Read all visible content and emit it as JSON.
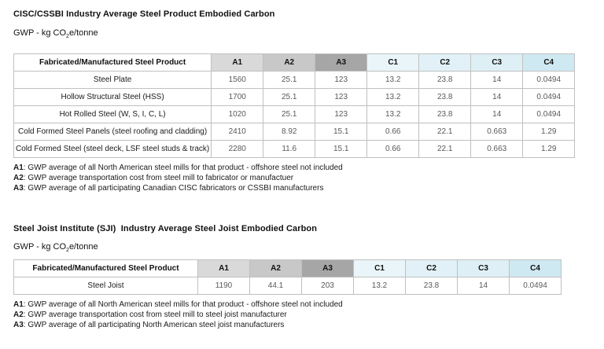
{
  "colors": {
    "table_border": "#c0c0c0",
    "header_gray_a1": "#d9d9d9",
    "header_gray_a2": "#c8c8c8",
    "header_gray_a3": "#a6a6a6",
    "header_blue_c1": "#eaf5f9",
    "header_blue_c2": "#e1f1f7",
    "header_blue_c3": "#def0f6",
    "header_blue_c4": "#cfe9f3"
  },
  "section1": {
    "title": "CISC/CSSBI Industry Average Steel Product Embodied Carbon",
    "subtitle": {
      "pre": "GWP - kg CO",
      "sub": "2",
      "post": "e/tonne"
    },
    "table": {
      "product_header": "Fabricated/Manufactured Steel Product",
      "columns": [
        "A1",
        "A2",
        "A3",
        "C1",
        "C2",
        "C3",
        "C4"
      ],
      "header_colors": [
        "#d9d9d9",
        "#c8c8c8",
        "#a6a6a6",
        "#eaf5f9",
        "#e1f1f7",
        "#def0f6",
        "#cfe9f3"
      ],
      "rows": [
        {
          "product": "Steel Plate",
          "values": [
            "1560",
            "25.1",
            "123",
            "13.2",
            "23.8",
            "14",
            "0.0494"
          ]
        },
        {
          "product": "Hollow Structural Steel (HSS)",
          "values": [
            "1700",
            "25.1",
            "123",
            "13.2",
            "23.8",
            "14",
            "0.0494"
          ]
        },
        {
          "product": "Hot Rolled Steel (W, S, I, C, L)",
          "values": [
            "1020",
            "25.1",
            "123",
            "13.2",
            "23.8",
            "14",
            "0.0494"
          ]
        },
        {
          "product": "Cold Formed Steel Panels (steel roofing and cladding)",
          "values": [
            "2410",
            "8.92",
            "15.1",
            "0.66",
            "22.1",
            "0.663",
            "1.29"
          ]
        },
        {
          "product": "Cold Formed Steel (steel deck, LSF steel studs & track)",
          "values": [
            "2280",
            "11.6",
            "15.1",
            "0.66",
            "22.1",
            "0.663",
            "1.29"
          ]
        }
      ]
    },
    "footnotes": [
      {
        "label": "A1",
        "text": ": GWP average of all North American steel mills for that product - offshore steel not included"
      },
      {
        "label": "A2",
        "text": ": GWP average transportation cost from steel mill to fabricator or manufactuer"
      },
      {
        "label": "A3",
        "text": ": GWP average of all participating Canadian CISC fabricators or CSSBI manufacturers"
      }
    ]
  },
  "section2": {
    "title": "Steel Joist Institute (SJI)  Industry Average Steel Joist Embodied Carbon",
    "subtitle": {
      "pre": "GWP - kg CO",
      "sub": "2",
      "post": "e/tonne"
    },
    "table": {
      "product_header": "Fabricated/Manufactured Steel Product",
      "columns": [
        "A1",
        "A2",
        "A3",
        "C1",
        "C2",
        "C3",
        "C4"
      ],
      "header_colors": [
        "#d9d9d9",
        "#c8c8c8",
        "#a6a6a6",
        "#eaf5f9",
        "#e1f1f7",
        "#def0f6",
        "#cfe9f3"
      ],
      "rows": [
        {
          "product": "Steel Joist",
          "values": [
            "1190",
            "44.1",
            "203",
            "13.2",
            "23.8",
            "14",
            "0.0494"
          ]
        }
      ]
    },
    "footnotes": [
      {
        "label": "A1",
        "text": ": GWP average of all North American steel mills for that product - offshore steel not included"
      },
      {
        "label": "A2",
        "text": ": GWP average transportation cost from steel mill to steel joist manufacturer"
      },
      {
        "label": "A3",
        "text": ": GWP average of all participating North American steel joist manufacturers"
      }
    ]
  }
}
